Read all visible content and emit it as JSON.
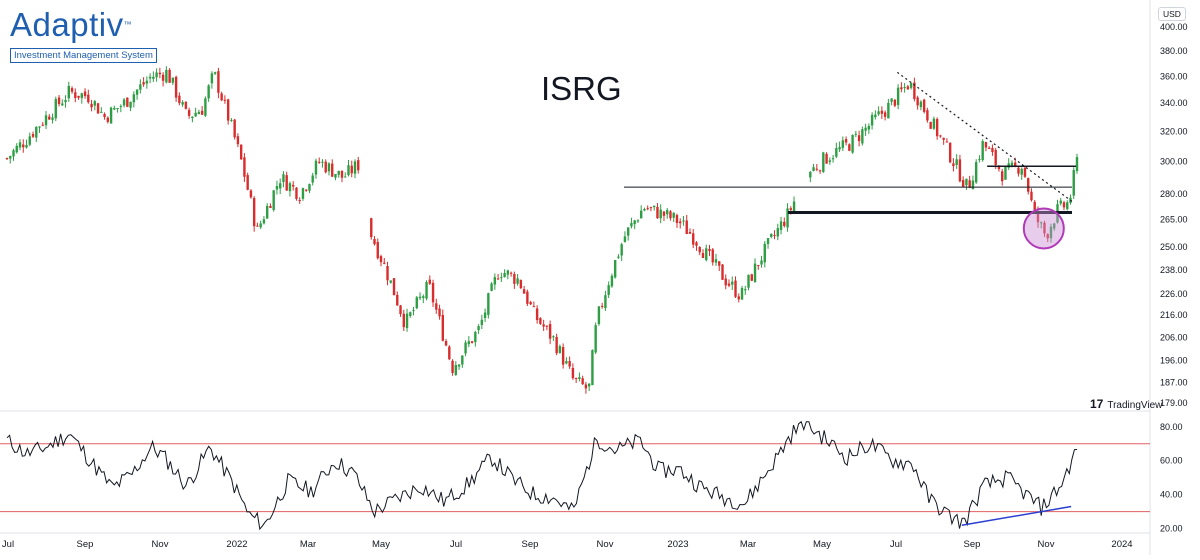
{
  "brand": {
    "logo_text": "Adaptiv",
    "logo_tm": "™",
    "logo_subtitle": "Investment Management System",
    "logo_color": "#1f5fb0"
  },
  "chart_data": {
    "type": "candlestick",
    "title": "ISRG",
    "currency_label": "USD",
    "watermark": "TradingView",
    "colors": {
      "up": "#26a69a",
      "down": "#ef5350",
      "green_candle": "#2e9e45",
      "red_candle": "#d92c2c",
      "rsi_band": "#e06060",
      "divergence": "#2b3fd1",
      "highlight_circle": "#b03ab8",
      "highlight_fill": "#c98fd3"
    },
    "x_axis": {
      "labels": [
        "Jul",
        "Sep",
        "Nov",
        "2022",
        "Mar",
        "May",
        "Jul",
        "Sep",
        "Nov",
        "2023",
        "Mar",
        "May",
        "Jul",
        "Sep",
        "Nov",
        "2024"
      ]
    },
    "price_axis": {
      "scale": "log",
      "ticks": [
        400,
        380,
        360,
        340,
        320,
        300,
        280,
        265,
        250,
        238,
        226,
        216,
        206,
        196,
        187,
        179
      ],
      "tick_labels": [
        "400.00",
        "380.00",
        "360.00",
        "340.00",
        "320.00",
        "300.00",
        "280.00",
        "265.00",
        "250.00",
        "238.00",
        "226.00",
        "216.00",
        "206.00",
        "196.00",
        "187.00",
        "179.00"
      ],
      "range": [
        179,
        400
      ]
    },
    "price_path": [
      {
        "t": 0,
        "v": 302
      },
      {
        "t": 0.5,
        "v": 315
      },
      {
        "t": 1,
        "v": 330
      },
      {
        "t": 1.6,
        "v": 348
      },
      {
        "t": 2.1,
        "v": 345
      },
      {
        "t": 2.5,
        "v": 330
      },
      {
        "t": 3.0,
        "v": 340
      },
      {
        "t": 3.7,
        "v": 360
      },
      {
        "t": 4.1,
        "v": 363
      },
      {
        "t": 4.6,
        "v": 330
      },
      {
        "t": 5.0,
        "v": 336
      },
      {
        "t": 5.3,
        "v": 362
      },
      {
        "t": 5.8,
        "v": 318
      },
      {
        "t": 6.0,
        "v": 300
      },
      {
        "t": 6.4,
        "v": 258
      },
      {
        "t": 7.0,
        "v": 290
      },
      {
        "t": 7.5,
        "v": 280
      },
      {
        "t": 8.0,
        "v": 300
      },
      {
        "t": 8.6,
        "v": 290
      },
      {
        "t": 9.0,
        "v": 298
      },
      {
        "t": 9.3,
        "v": 258
      },
      {
        "t": 9.7,
        "v": 238
      },
      {
        "t": 10.2,
        "v": 212
      },
      {
        "t": 10.8,
        "v": 230
      },
      {
        "t": 11.4,
        "v": 193
      },
      {
        "t": 12.1,
        "v": 210
      },
      {
        "t": 12.6,
        "v": 238
      },
      {
        "t": 13.1,
        "v": 233
      },
      {
        "t": 13.5,
        "v": 216
      },
      {
        "t": 14.0,
        "v": 205
      },
      {
        "t": 14.5,
        "v": 188
      },
      {
        "t": 14.9,
        "v": 184
      },
      {
        "t": 15.1,
        "v": 213
      },
      {
        "t": 15.4,
        "v": 232
      },
      {
        "t": 15.8,
        "v": 255
      },
      {
        "t": 16.3,
        "v": 272
      },
      {
        "t": 16.8,
        "v": 268
      },
      {
        "t": 17.2,
        "v": 264
      },
      {
        "t": 17.6,
        "v": 255
      },
      {
        "t": 17.9,
        "v": 246
      },
      {
        "t": 18.4,
        "v": 233
      },
      {
        "t": 18.8,
        "v": 225
      },
      {
        "t": 19.3,
        "v": 244
      },
      {
        "t": 20.0,
        "v": 268
      },
      {
        "t": 20.5,
        "v": 292
      },
      {
        "t": 21.0,
        "v": 303
      },
      {
        "t": 21.6,
        "v": 312
      },
      {
        "t": 22.0,
        "v": 322
      },
      {
        "t": 22.6,
        "v": 338
      },
      {
        "t": 23.1,
        "v": 355
      },
      {
        "t": 23.7,
        "v": 325
      },
      {
        "t": 24.2,
        "v": 302
      },
      {
        "t": 24.6,
        "v": 283
      },
      {
        "t": 25.0,
        "v": 312
      },
      {
        "t": 25.5,
        "v": 292
      },
      {
        "t": 26.0,
        "v": 298
      },
      {
        "t": 26.3,
        "v": 268
      },
      {
        "t": 26.6,
        "v": 256
      },
      {
        "t": 26.9,
        "v": 270
      },
      {
        "t": 27.2,
        "v": 275
      },
      {
        "t": 27.4,
        "v": 300
      }
    ],
    "gap_segments": [
      [
        9.0,
        9.3
      ],
      [
        20.2,
        20.5
      ]
    ],
    "annotations": {
      "resistance_level": 297,
      "support_thin": 284,
      "support_thick": 269,
      "trendline": {
        "from": {
          "t": 22.8,
          "v": 363
        },
        "to": {
          "t": 27.3,
          "v": 275
        }
      },
      "highlight_center": {
        "t": 26.55,
        "v": 260
      }
    },
    "rsi": {
      "axis_ticks": [
        80,
        60,
        40,
        20
      ],
      "tick_labels": [
        "80.00",
        "60.00",
        "40.00",
        "20.00"
      ],
      "range": [
        18,
        84
      ],
      "bands": [
        70,
        30
      ],
      "path": [
        {
          "t": 0,
          "v": 72
        },
        {
          "t": 0.5,
          "v": 64
        },
        {
          "t": 1.0,
          "v": 68
        },
        {
          "t": 1.6,
          "v": 76
        },
        {
          "t": 2.2,
          "v": 58
        },
        {
          "t": 2.7,
          "v": 44
        },
        {
          "t": 3.2,
          "v": 52
        },
        {
          "t": 3.7,
          "v": 68
        },
        {
          "t": 4.0,
          "v": 63
        },
        {
          "t": 4.6,
          "v": 45
        },
        {
          "t": 5.2,
          "v": 68
        },
        {
          "t": 5.8,
          "v": 46
        },
        {
          "t": 6.2,
          "v": 28
        },
        {
          "t": 6.6,
          "v": 22
        },
        {
          "t": 7.2,
          "v": 48
        },
        {
          "t": 7.8,
          "v": 42
        },
        {
          "t": 8.4,
          "v": 60
        },
        {
          "t": 8.9,
          "v": 52
        },
        {
          "t": 9.4,
          "v": 30
        },
        {
          "t": 10.0,
          "v": 38
        },
        {
          "t": 10.6,
          "v": 45
        },
        {
          "t": 11.2,
          "v": 36
        },
        {
          "t": 11.8,
          "v": 46
        },
        {
          "t": 12.4,
          "v": 62
        },
        {
          "t": 13.0,
          "v": 48
        },
        {
          "t": 13.5,
          "v": 40
        },
        {
          "t": 14.0,
          "v": 38
        },
        {
          "t": 14.5,
          "v": 30
        },
        {
          "t": 15.1,
          "v": 73
        },
        {
          "t": 15.6,
          "v": 66
        },
        {
          "t": 16.2,
          "v": 72
        },
        {
          "t": 16.7,
          "v": 54
        },
        {
          "t": 17.2,
          "v": 55
        },
        {
          "t": 17.8,
          "v": 44
        },
        {
          "t": 18.4,
          "v": 38
        },
        {
          "t": 18.9,
          "v": 35
        },
        {
          "t": 19.6,
          "v": 58
        },
        {
          "t": 20.1,
          "v": 76
        },
        {
          "t": 20.4,
          "v": 83
        },
        {
          "t": 21.0,
          "v": 72
        },
        {
          "t": 21.5,
          "v": 62
        },
        {
          "t": 22.1,
          "v": 70
        },
        {
          "t": 22.7,
          "v": 60
        },
        {
          "t": 23.2,
          "v": 58
        },
        {
          "t": 23.6,
          "v": 38
        },
        {
          "t": 24.1,
          "v": 28
        },
        {
          "t": 24.5,
          "v": 23
        },
        {
          "t": 25.0,
          "v": 45
        },
        {
          "t": 25.6,
          "v": 50
        },
        {
          "t": 26.1,
          "v": 40
        },
        {
          "t": 26.5,
          "v": 32
        },
        {
          "t": 27.0,
          "v": 46
        },
        {
          "t": 27.4,
          "v": 67
        }
      ],
      "divergence_line": {
        "from": {
          "t": 24.45,
          "v": 22
        },
        "to": {
          "t": 27.25,
          "v": 33
        }
      }
    }
  }
}
